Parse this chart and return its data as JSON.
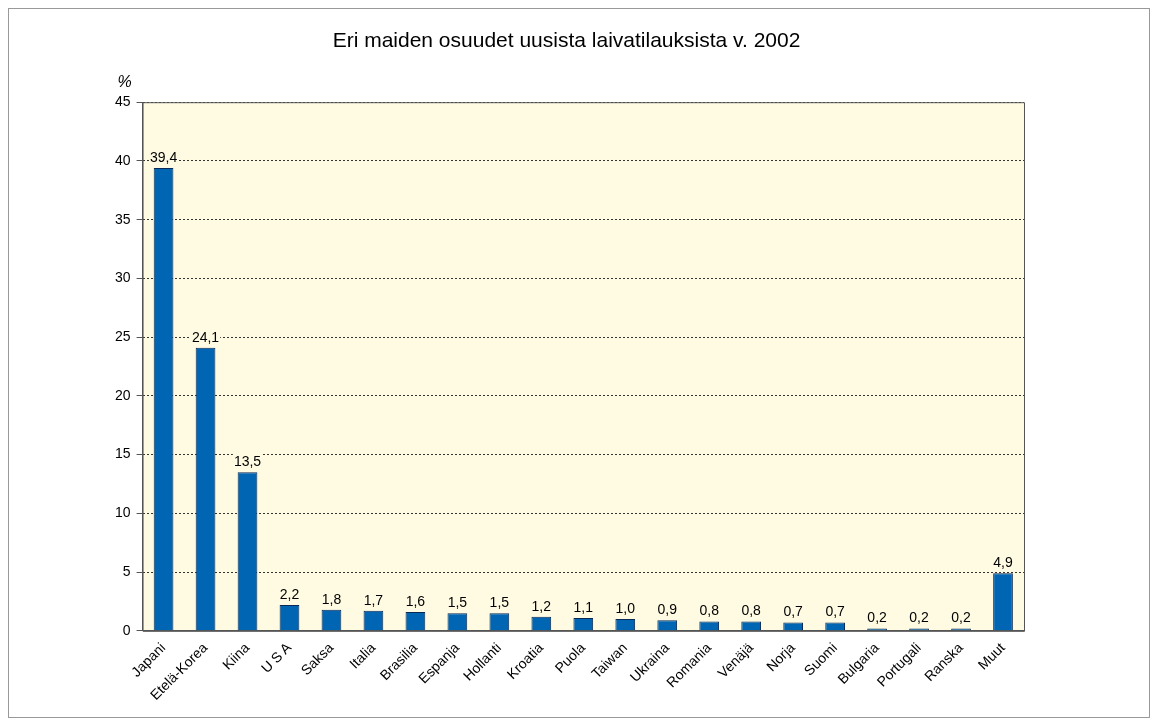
{
  "chart_data": {
    "type": "bar",
    "title": "Eri maiden osuudet uusista laivatilauksista v. 2002",
    "ylabel": "%",
    "categories": [
      "Japani",
      "Etelä-Korea",
      "Kiina",
      "U S A",
      "Saksa",
      "Italia",
      "Brasilia",
      "Espanja",
      "Hollanti",
      "Kroatia",
      "Puola",
      "Taiwan",
      "Ukraina",
      "Romania",
      "Venäjä",
      "Norja",
      "Suomi",
      "Bulgaria",
      "Portugali",
      "Ranska",
      "Muut"
    ],
    "values": [
      39.4,
      24.1,
      13.5,
      2.2,
      1.8,
      1.7,
      1.6,
      1.5,
      1.5,
      1.2,
      1.1,
      1.0,
      0.9,
      0.8,
      0.8,
      0.7,
      0.7,
      0.2,
      0.2,
      0.2,
      4.9
    ],
    "value_labels": [
      "39,4",
      "24,1",
      "13,5",
      "2,2",
      "1,8",
      "1,7",
      "1,6",
      "1,5",
      "1,5",
      "1,2",
      "1,1",
      "1,0",
      "0,9",
      "0,8",
      "0,8",
      "0,7",
      "0,7",
      "0,2",
      "0,2",
      "0,2",
      "4,9"
    ],
    "color": "#0066b3",
    "ylim": [
      0,
      45
    ],
    "yticks": [
      0,
      5,
      10,
      15,
      20,
      25,
      30,
      35,
      40,
      45
    ],
    "grid": "y",
    "legend": false
  }
}
